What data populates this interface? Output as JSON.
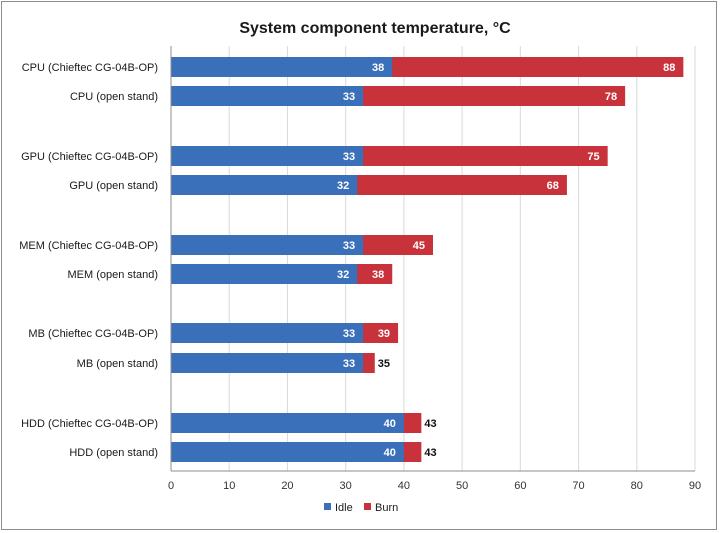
{
  "chart_data": {
    "type": "bar",
    "orientation": "horizontal",
    "stacked": "overlay",
    "title": "System component temperature, °C",
    "categories": [
      "CPU (Chieftec CG-04B-OP)",
      "CPU (open stand)",
      "GPU (Chieftec CG-04B-OP)",
      "GPU (open stand)",
      "MEM (Chieftec CG-04B-OP)",
      "MEM (open stand)",
      "MB (Chieftec CG-04B-OP)",
      "MB (open stand)",
      "HDD (Chieftec CG-04B-OP)",
      "HDD (open stand)"
    ],
    "series": [
      {
        "name": "Idle",
        "color": "#3a6fba",
        "values": [
          38,
          33,
          33,
          32,
          33,
          32,
          33,
          33,
          40,
          40
        ]
      },
      {
        "name": "Burn",
        "color": "#c8323a",
        "values": [
          88,
          78,
          75,
          68,
          45,
          38,
          39,
          35,
          43,
          43
        ]
      }
    ],
    "xlim": [
      0,
      90
    ],
    "xticks": [
      "0",
      "10",
      "20",
      "30",
      "40",
      "50",
      "60",
      "70",
      "80",
      "90"
    ],
    "grid": true,
    "legend": "bottom"
  }
}
